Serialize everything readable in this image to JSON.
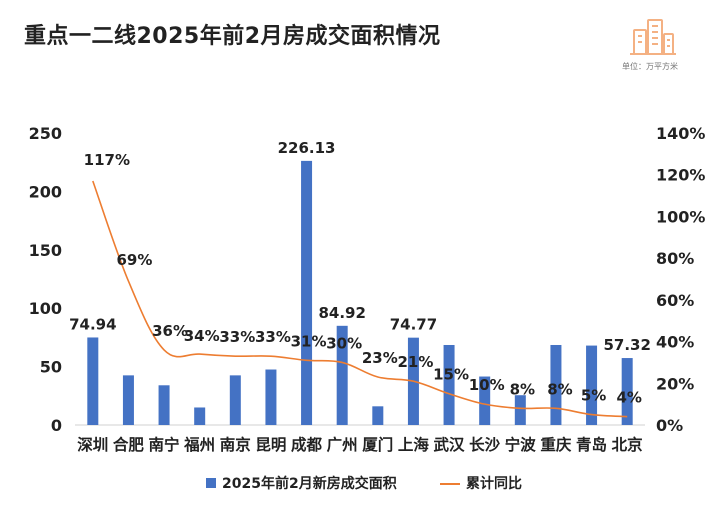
{
  "header": {
    "title": "重点一二线2025年前2月房成交面积情况",
    "unit_label": "单位：万平方米"
  },
  "colors": {
    "bar": "#4472C4",
    "line": "#ED7D31",
    "logo": "#F4B183"
  },
  "chart_data": {
    "type": "bar",
    "categories": [
      "深圳",
      "合肥",
      "南宁",
      "福州",
      "南京",
      "昆明",
      "成都",
      "广州",
      "厦门",
      "上海",
      "武汉",
      "长沙",
      "宁波",
      "重庆",
      "青岛",
      "北京"
    ],
    "series": [
      {
        "name": "2025年前2月新房成交面积",
        "type": "bar",
        "axis": "left",
        "values": [
          74.94,
          42.5,
          34.0,
          15.0,
          42.5,
          47.5,
          226.13,
          84.92,
          16.0,
          74.77,
          68.5,
          41.5,
          25.5,
          68.5,
          68.0,
          57.32
        ],
        "labels": [
          "74.94",
          "",
          "",
          "",
          "",
          "",
          "226.13",
          "84.92",
          "",
          "74.77",
          "",
          "",
          "",
          "",
          "",
          "57.32"
        ]
      },
      {
        "name": "累计同比",
        "type": "line",
        "axis": "right",
        "values": [
          117,
          69,
          36,
          34,
          33,
          33,
          31,
          30,
          23,
          21,
          15,
          10,
          8,
          8,
          5,
          4
        ],
        "labels": [
          "117%",
          "69%",
          "36%",
          "34%",
          "33%",
          "33%",
          "31%",
          "30%",
          "23%",
          "21%",
          "15%",
          "10%",
          "8%",
          "8%",
          "5%",
          "4%"
        ]
      }
    ],
    "y_left": {
      "range": [
        0,
        250
      ],
      "ticks": [
        "0",
        "50",
        "100",
        "150",
        "200",
        "250"
      ]
    },
    "y_right": {
      "range": [
        0,
        140
      ],
      "ticks": [
        "0%",
        "20%",
        "40%",
        "60%",
        "80%",
        "100%",
        "120%",
        "140%"
      ]
    },
    "gridlines": false,
    "legend_position": "bottom",
    "legend": [
      {
        "name": "2025年前2月新房成交面积",
        "marker": "bar"
      },
      {
        "name": "累计同比",
        "marker": "line"
      }
    ]
  }
}
